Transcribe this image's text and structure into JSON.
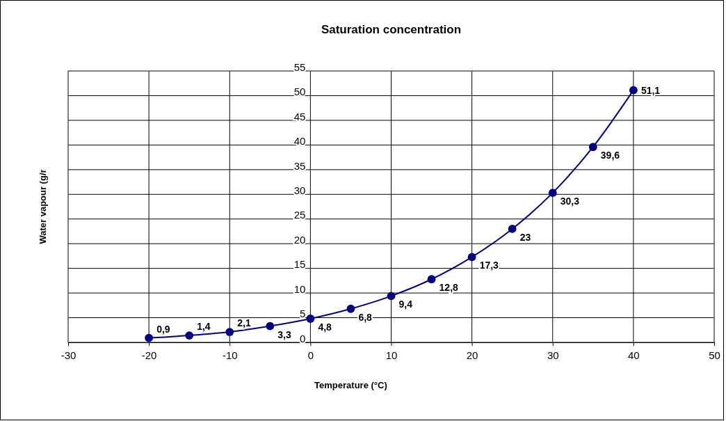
{
  "chart_data": {
    "type": "line",
    "title": "Saturation concentration",
    "xlabel": "Temperature (°C)",
    "ylabel": "Water vapour (g/r",
    "x": [
      -20,
      -15,
      -10,
      -5,
      0,
      5,
      10,
      15,
      20,
      25,
      30,
      35,
      40
    ],
    "series": [
      {
        "color": "#000080",
        "values": [
          0.9,
          1.4,
          2.1,
          3.3,
          4.8,
          6.8,
          9.4,
          12.8,
          17.3,
          23,
          30.3,
          39.6,
          51.1
        ],
        "value_labels": [
          "0,9",
          "1,4",
          "2,1",
          "3,3",
          "4,8",
          "6,8",
          "9,4",
          "12,8",
          "17,3",
          "23",
          "30,3",
          "39,6",
          "51,1"
        ]
      }
    ],
    "xlim": [
      -30,
      50
    ],
    "xticks": [
      -30,
      -20,
      -10,
      0,
      10,
      20,
      30,
      40,
      50
    ],
    "ylim": [
      0,
      55
    ],
    "yticks": [
      0,
      5,
      10,
      15,
      20,
      25,
      30,
      35,
      40,
      45,
      50,
      55
    ],
    "grid": true,
    "marker": "circle",
    "line_style": "solid"
  }
}
